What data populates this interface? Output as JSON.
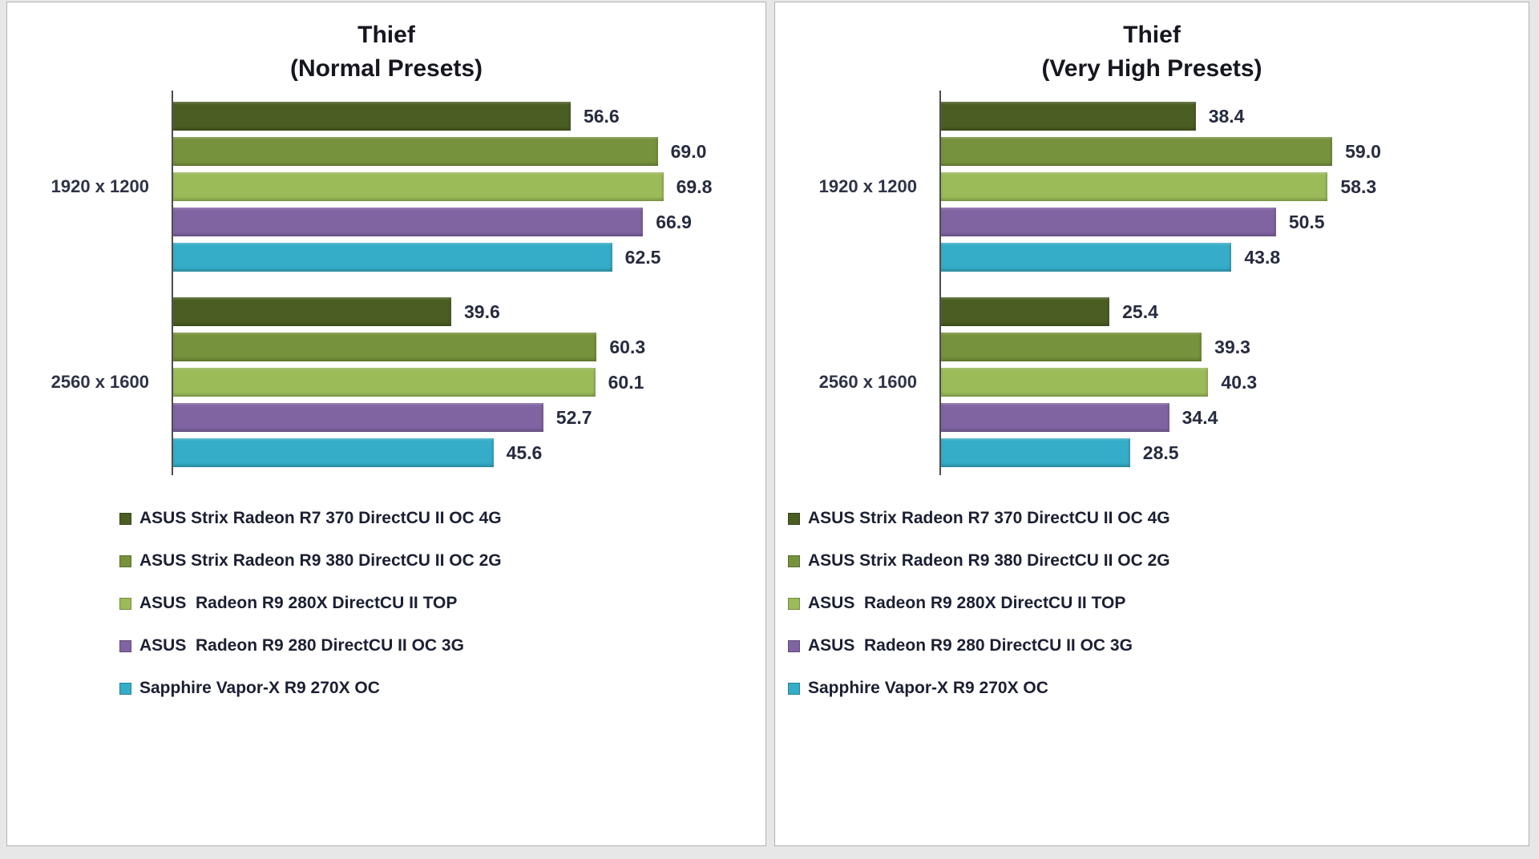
{
  "page": {
    "background": "#e7e7e7",
    "card_border": "#b3b3b3"
  },
  "chart_data": [
    {
      "type": "bar",
      "orientation": "horizontal",
      "title": "Thief",
      "subtitle": "(Normal Presets)",
      "categories": [
        "1920 x 1200",
        "2560 x 1600"
      ],
      "series": [
        {
          "name": "ASUS Strix Radeon R7 370 DirectCU II OC 4G",
          "color": "#4a5e23",
          "values": [
            56.6,
            39.6
          ]
        },
        {
          "name": "ASUS Strix Radeon R9 380 DirectCU II OC 2G",
          "color": "#76923c",
          "values": [
            69.0,
            60.3
          ]
        },
        {
          "name": "ASUS  Radeon R9 280X DirectCU II TOP",
          "color": "#9bbb59",
          "values": [
            69.8,
            60.1
          ]
        },
        {
          "name": "ASUS  Radeon R9 280 DirectCU II OC 3G",
          "color": "#8064a2",
          "values": [
            66.9,
            52.7
          ]
        },
        {
          "name": "Sapphire Vapor-X R9 270X OC",
          "color": "#35adc8",
          "values": [
            62.5,
            45.6
          ]
        }
      ],
      "value_labels": true,
      "value_decimals": 1,
      "xlim": [
        0,
        80
      ],
      "grid": false,
      "legend_position": "bottom-left"
    },
    {
      "type": "bar",
      "orientation": "horizontal",
      "title": "Thief",
      "subtitle": "(Very High Presets)",
      "categories": [
        "1920 x 1200",
        "2560 x 1600"
      ],
      "series": [
        {
          "name": "ASUS Strix Radeon R7 370 DirectCU II OC 4G",
          "color": "#4a5e23",
          "values": [
            38.4,
            25.4
          ]
        },
        {
          "name": "ASUS Strix Radeon R9 380 DirectCU II OC 2G",
          "color": "#76923c",
          "values": [
            59.0,
            39.3
          ]
        },
        {
          "name": "ASUS  Radeon R9 280X DirectCU II TOP",
          "color": "#9bbb59",
          "values": [
            58.3,
            40.3
          ]
        },
        {
          "name": "ASUS  Radeon R9 280 DirectCU II OC 3G",
          "color": "#8064a2",
          "values": [
            50.5,
            34.4
          ]
        },
        {
          "name": "Sapphire Vapor-X R9 270X OC",
          "color": "#35adc8",
          "values": [
            43.8,
            28.5
          ]
        }
      ],
      "value_labels": true,
      "value_decimals": 1,
      "xlim": [
        0,
        84
      ],
      "grid": false,
      "legend_position": "bottom-left"
    }
  ]
}
